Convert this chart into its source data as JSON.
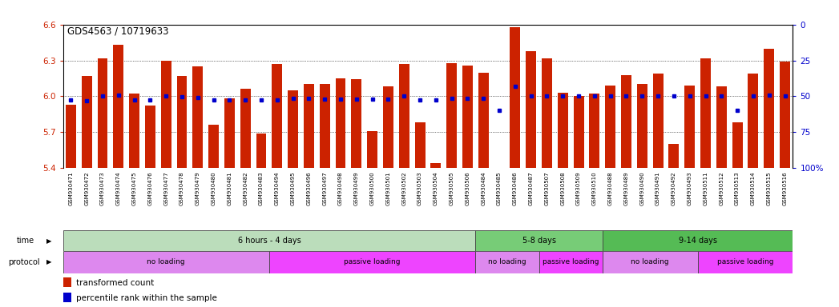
{
  "title": "GDS4563 / 10719633",
  "samples": [
    "GSM930471",
    "GSM930472",
    "GSM930473",
    "GSM930474",
    "GSM930475",
    "GSM930476",
    "GSM930477",
    "GSM930478",
    "GSM930479",
    "GSM930480",
    "GSM930481",
    "GSM930482",
    "GSM930483",
    "GSM930494",
    "GSM930495",
    "GSM930496",
    "GSM930497",
    "GSM930498",
    "GSM930499",
    "GSM930500",
    "GSM930501",
    "GSM930502",
    "GSM930503",
    "GSM930504",
    "GSM930505",
    "GSM930506",
    "GSM930484",
    "GSM930485",
    "GSM930486",
    "GSM930487",
    "GSM930507",
    "GSM930508",
    "GSM930509",
    "GSM930510",
    "GSM930488",
    "GSM930489",
    "GSM930490",
    "GSM930491",
    "GSM930492",
    "GSM930493",
    "GSM930511",
    "GSM930512",
    "GSM930513",
    "GSM930514",
    "GSM930515",
    "GSM930516"
  ],
  "bar_values": [
    5.93,
    6.17,
    6.32,
    6.43,
    6.02,
    5.92,
    6.3,
    6.17,
    6.25,
    5.76,
    5.98,
    6.06,
    5.69,
    6.27,
    6.05,
    6.1,
    6.1,
    6.15,
    6.14,
    5.71,
    6.08,
    6.27,
    5.78,
    5.44,
    6.28,
    6.26,
    6.2,
    5.29,
    6.58,
    6.38,
    6.32,
    6.03,
    6.0,
    6.02,
    6.09,
    6.18,
    6.1,
    6.19,
    5.6,
    6.09,
    6.32,
    6.08,
    5.78,
    6.19,
    6.4,
    6.29
  ],
  "percentile_values": [
    47.5,
    47.0,
    50.0,
    51.0,
    47.5,
    47.5,
    50.5,
    49.5,
    49.0,
    47.5,
    47.5,
    47.5,
    47.5,
    47.5,
    48.5,
    48.5,
    48.0,
    48.0,
    48.0,
    48.0,
    48.0,
    50.0,
    47.5,
    47.5,
    48.5,
    48.5,
    48.5,
    40.0,
    57.0,
    50.0,
    50.0,
    50.0,
    50.0,
    50.5,
    50.0,
    50.0,
    50.0,
    50.0,
    50.0,
    50.0,
    50.0,
    50.0,
    40.0,
    50.0,
    51.0,
    50.0
  ],
  "ylim_left": [
    5.4,
    6.6
  ],
  "yticks_left": [
    5.4,
    5.7,
    6.0,
    6.3,
    6.6
  ],
  "yticks_right": [
    0,
    25,
    50,
    75,
    100
  ],
  "bar_color": "#CC2200",
  "dot_color": "#0000CC",
  "bg_color": "#FFFFFF",
  "grid_color": "#000000",
  "ticklabel_bg": "#D0D0D0",
  "time_groups": [
    {
      "label": "6 hours - 4 days",
      "start": 0,
      "end": 26,
      "color": "#BBDDBB"
    },
    {
      "label": "5-8 days",
      "start": 26,
      "end": 34,
      "color": "#77CC77"
    },
    {
      "label": "9-14 days",
      "start": 34,
      "end": 46,
      "color": "#55BB55"
    }
  ],
  "protocol_groups": [
    {
      "label": "no loading",
      "start": 0,
      "end": 13,
      "color": "#DD88EE"
    },
    {
      "label": "passive loading",
      "start": 13,
      "end": 26,
      "color": "#EE44FF"
    },
    {
      "label": "no loading",
      "start": 26,
      "end": 30,
      "color": "#DD88EE"
    },
    {
      "label": "passive loading",
      "start": 30,
      "end": 34,
      "color": "#EE44FF"
    },
    {
      "label": "no loading",
      "start": 34,
      "end": 40,
      "color": "#DD88EE"
    },
    {
      "label": "passive loading",
      "start": 40,
      "end": 46,
      "color": "#EE44FF"
    }
  ],
  "tick_color_left": "#CC2200",
  "tick_color_right": "#0000CC"
}
